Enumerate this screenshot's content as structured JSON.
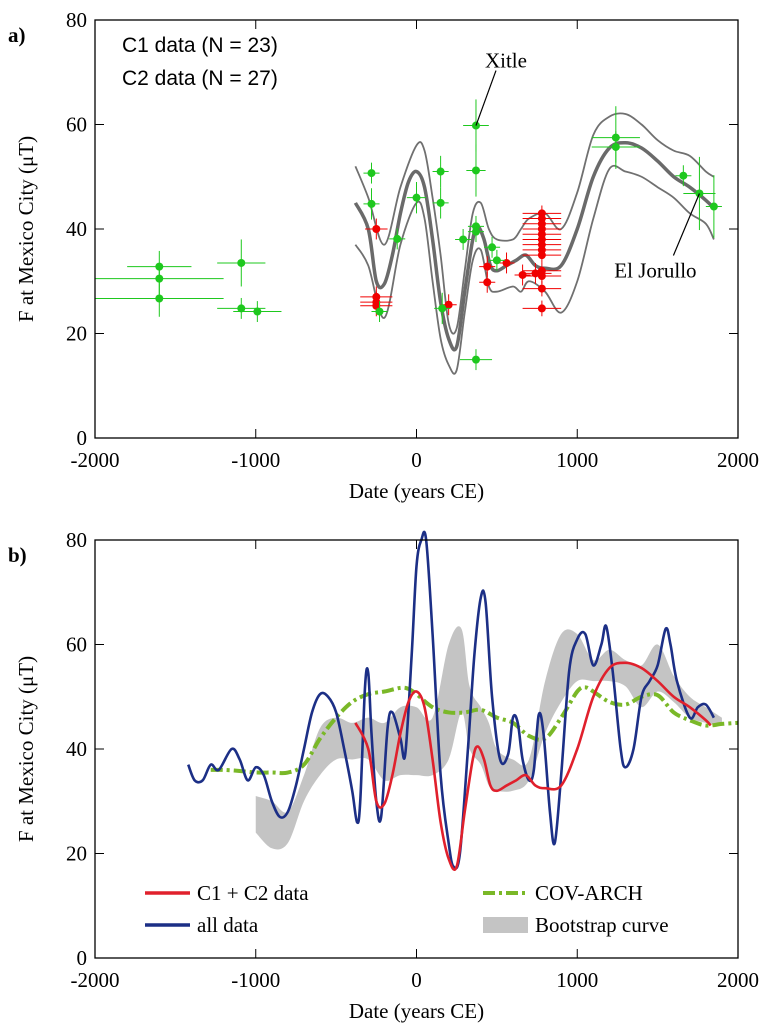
{
  "chart_data": [
    {
      "type": "scatter",
      "label": "a)",
      "xlabel": "Date (years CE)",
      "ylabel": "F at Mexico City (μT)",
      "xlim": [
        -2000,
        2000
      ],
      "ylim": [
        0,
        80
      ],
      "xticks": [
        -2000,
        -1000,
        0,
        1000,
        2000
      ],
      "yticks": [
        0,
        20,
        40,
        60,
        80
      ],
      "series": [
        {
          "name": "C1 data (N = 23)",
          "color": "#f00000",
          "x": [
            -250,
            -250,
            -250,
            -250,
            200,
            440,
            440,
            560,
            660,
            740,
            780,
            780,
            780,
            780,
            780,
            780,
            780,
            780,
            780,
            780,
            780,
            780,
            780
          ],
          "values": [
            40,
            27,
            26,
            25.3,
            25.5,
            32.8,
            29.8,
            33.5,
            31.2,
            31.5,
            43,
            42,
            41,
            40,
            39,
            38,
            37,
            36,
            35,
            32,
            31,
            28.6,
            24.8
          ],
          "xerr": [
            70,
            100,
            100,
            100,
            50,
            50,
            50,
            50,
            50,
            100,
            120,
            120,
            120,
            120,
            120,
            120,
            120,
            120,
            120,
            120,
            120,
            120,
            120
          ],
          "yerr": [
            2,
            2,
            2,
            2,
            2,
            2,
            2,
            2,
            2,
            2,
            1.5,
            1.5,
            1.5,
            1.5,
            1.5,
            1.5,
            1.5,
            1.5,
            1.5,
            1.5,
            1.5,
            1.5,
            1.5
          ]
        },
        {
          "name": "C2 data (N = 27)",
          "color": "#1ec81e",
          "x": [
            -1600,
            -1600,
            -1600,
            -1090,
            -1090,
            -990,
            -280,
            -280,
            -230,
            -120,
            0,
            150,
            150,
            160,
            290,
            370,
            370,
            370,
            370,
            370,
            470,
            500,
            1240,
            1240,
            1660,
            1760,
            1850
          ],
          "values": [
            32.8,
            30.5,
            26.7,
            33.5,
            24.8,
            24.2,
            50.7,
            44.8,
            24.2,
            38.1,
            46,
            51,
            45,
            24.8,
            38,
            59.8,
            51.2,
            40.5,
            39.5,
            15,
            36.5,
            34,
            57.5,
            55.7,
            50.2,
            46.8,
            44.3
          ],
          "xerr": [
            200,
            400,
            400,
            150,
            150,
            150,
            50,
            50,
            50,
            50,
            60,
            50,
            50,
            50,
            50,
            80,
            60,
            50,
            50,
            100,
            50,
            50,
            150,
            150,
            50,
            100,
            50
          ],
          "yerr": [
            3,
            3,
            3.5,
            4.5,
            2,
            2,
            2,
            3,
            2,
            2,
            3,
            3,
            3,
            3,
            2,
            5,
            5,
            2,
            2,
            2,
            2,
            2,
            6,
            3,
            2,
            7,
            6
          ]
        }
      ],
      "curves": [
        {
          "color": "#707070",
          "x": [
            -380,
            -300,
            -200,
            -100,
            0,
            50,
            100,
            150,
            200,
            250,
            300,
            350,
            400,
            450,
            500,
            600,
            650,
            700,
            800,
            900,
            1000,
            1100,
            1200,
            1300,
            1400,
            1500,
            1600,
            1700,
            1800,
            1850
          ],
          "values": [
            52,
            46,
            37,
            48,
            56,
            55,
            46,
            35,
            22,
            21,
            32,
            43,
            45,
            40,
            38,
            38,
            40,
            42,
            43,
            40,
            47,
            58,
            61.5,
            62,
            60,
            57,
            55,
            54,
            51,
            50
          ]
        },
        {
          "color": "#707070",
          "x": [
            -380,
            -300,
            -200,
            -100,
            0,
            50,
            100,
            150,
            200,
            250,
            300,
            350,
            400,
            450,
            500,
            600,
            650,
            700,
            800,
            900,
            1000,
            1100,
            1200,
            1300,
            1400,
            1500,
            1600,
            1700,
            1800,
            1850
          ],
          "values": [
            37,
            33,
            23,
            37,
            45,
            42,
            30,
            19,
            14,
            13,
            24,
            34,
            36,
            29,
            28,
            29,
            28,
            30,
            28,
            24,
            30,
            42,
            51.5,
            51,
            50,
            48,
            46,
            43,
            41,
            38
          ]
        },
        {
          "color": "#6a6a6a",
          "x": [
            -380,
            -300,
            -250,
            -200,
            -150,
            -100,
            -50,
            0,
            50,
            100,
            150,
            200,
            250,
            300,
            350,
            380,
            420,
            460,
            500,
            560,
            620,
            680,
            740,
            800,
            900,
            1000,
            1100,
            1200,
            1300,
            1400,
            1500,
            1600,
            1700,
            1800,
            1850
          ],
          "values": [
            45,
            40,
            30,
            29.5,
            35,
            43,
            49,
            51,
            48,
            38,
            26,
            19,
            17.5,
            28,
            38,
            40.5,
            38,
            33,
            32,
            33,
            34,
            35,
            33,
            32.5,
            33,
            40,
            50,
            55.5,
            56.5,
            55.5,
            53,
            50,
            48,
            45.5,
            44
          ]
        }
      ],
      "annotations": [
        {
          "text": "Xitle",
          "x": 370,
          "y": 59.8
        },
        {
          "text": "El Jorullo",
          "x": 1760,
          "y": 46.8
        }
      ]
    },
    {
      "type": "line",
      "label": "b)",
      "xlabel": "Date (years CE)",
      "ylabel": "F at Mexico City (μT)",
      "xlim": [
        -2000,
        2000
      ],
      "ylim": [
        0,
        80
      ],
      "xticks": [
        -2000,
        -1000,
        0,
        1000,
        2000
      ],
      "yticks": [
        0,
        20,
        40,
        60,
        80
      ],
      "series": [
        {
          "name": "C1 + C2 data",
          "color": "#e0202c",
          "style": "solid",
          "x": [
            -380,
            -300,
            -250,
            -200,
            -150,
            -100,
            -50,
            0,
            50,
            100,
            150,
            200,
            250,
            300,
            350,
            380,
            420,
            460,
            500,
            560,
            620,
            680,
            740,
            800,
            900,
            1000,
            1100,
            1200,
            1300,
            1400,
            1500,
            1600,
            1700,
            1800,
            1830
          ],
          "values": [
            45,
            40,
            30,
            29.5,
            35,
            43,
            49,
            51,
            48,
            38,
            26,
            19,
            17.5,
            28,
            38,
            40.5,
            38,
            33,
            32,
            33,
            34,
            35,
            33,
            32.5,
            33,
            40,
            50,
            55.5,
            56.5,
            55.5,
            53,
            50,
            48,
            45.5,
            44.5
          ]
        },
        {
          "name": "all data",
          "color": "#1c2f86",
          "style": "solid",
          "x": [
            -1420,
            -1380,
            -1330,
            -1280,
            -1230,
            -1150,
            -1100,
            -1050,
            -1000,
            -950,
            -900,
            -850,
            -800,
            -750,
            -700,
            -650,
            -600,
            -550,
            -500,
            -450,
            -400,
            -370,
            -350,
            -320,
            -300,
            -280,
            -250,
            -220,
            -180,
            -150,
            -100,
            -70,
            -30,
            0,
            30,
            60,
            100,
            150,
            200,
            230,
            270,
            320,
            360,
            400,
            430,
            470,
            520,
            570,
            600,
            630,
            660,
            700,
            730,
            760,
            790,
            830,
            860,
            900,
            950,
            1000,
            1050,
            1100,
            1150,
            1180,
            1220,
            1270,
            1300,
            1350,
            1400,
            1450,
            1500,
            1550,
            1580,
            1620,
            1700,
            1750,
            1800,
            1850
          ],
          "values": [
            37,
            34,
            34,
            37,
            36,
            40,
            38,
            34,
            36.5,
            35,
            30,
            27,
            28,
            33,
            40,
            47,
            50.5,
            50,
            47,
            40,
            32,
            26,
            30,
            52,
            54.5,
            43,
            30,
            27,
            44,
            47,
            42,
            39,
            58,
            75,
            80,
            80,
            62,
            35,
            22,
            17.5,
            20,
            40,
            58,
            69,
            68,
            50,
            38,
            39,
            46,
            45,
            38,
            34,
            36,
            46.5,
            43,
            28,
            22,
            35,
            55,
            61,
            62,
            56,
            60,
            63.5,
            55,
            40,
            36.5,
            40,
            50,
            53,
            56,
            63,
            60,
            53,
            46,
            48,
            48.5,
            46
          ]
        },
        {
          "name": "COV-ARCH",
          "color": "#7ab828",
          "style": "dashdot",
          "x": [
            -1280,
            -1200,
            -1100,
            -1000,
            -900,
            -800,
            -700,
            -600,
            -500,
            -400,
            -300,
            -200,
            -100,
            -50,
            0,
            100,
            200,
            300,
            400,
            500,
            600,
            700,
            800,
            900,
            1000,
            1050,
            1100,
            1200,
            1300,
            1400,
            1500,
            1600,
            1700,
            1800,
            1900,
            2000
          ],
          "values": [
            36,
            36,
            35.8,
            35.5,
            35.5,
            35.5,
            37,
            42,
            46,
            49,
            50.5,
            51,
            51.7,
            51.5,
            50.5,
            48,
            47,
            47,
            47.5,
            46,
            45,
            42.5,
            42,
            46,
            51,
            51.8,
            51,
            49,
            48.5,
            50,
            50.3,
            47,
            45.5,
            44.5,
            44.8,
            45
          ]
        },
        {
          "name": "Bootstrap curve",
          "color": "#c4c4c4",
          "style": "band",
          "x": [
            -1000,
            -900,
            -800,
            -700,
            -600,
            -500,
            -400,
            -300,
            -200,
            -100,
            0,
            100,
            200,
            280,
            330,
            400,
            450,
            500,
            600,
            700,
            800,
            900,
            1000,
            1100,
            1200,
            1300,
            1400,
            1500,
            1600,
            1700,
            1800,
            1900
          ],
          "lower": [
            24,
            21,
            22,
            30,
            35,
            38,
            38,
            38,
            34,
            35,
            35,
            35,
            38,
            47,
            40,
            37,
            33,
            32,
            32,
            34,
            43,
            49,
            53,
            53,
            53,
            52,
            48,
            51,
            49,
            46,
            45,
            44.5
          ],
          "upper": [
            31,
            30,
            28,
            35,
            44,
            46,
            45,
            46,
            45,
            48,
            48,
            46,
            60,
            63,
            52,
            48,
            45,
            40,
            38,
            38,
            53,
            62,
            62,
            57,
            59,
            57,
            56,
            60,
            54,
            50,
            48,
            46
          ]
        }
      ]
    }
  ]
}
